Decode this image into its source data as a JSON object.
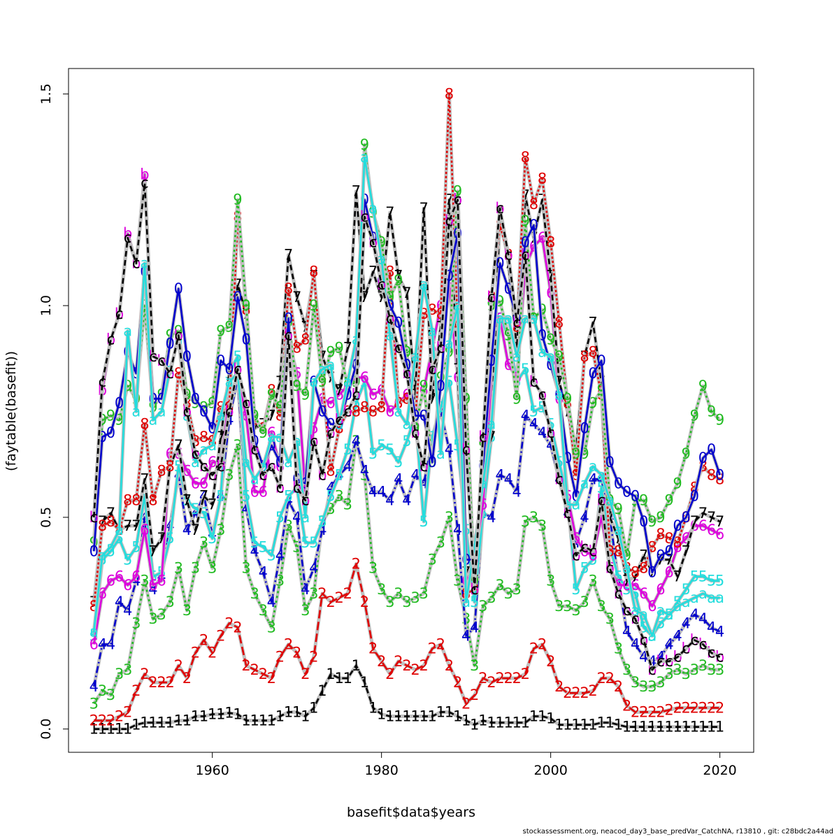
{
  "chart_data": {
    "type": "line",
    "xlabel": "basefit$data$years",
    "ylabel": "(faytable(basefit))",
    "xlim": [
      1943,
      2024
    ],
    "ylim": [
      -0.055,
      1.56
    ],
    "x_ticks": [
      1960,
      1980,
      2000,
      2020
    ],
    "y_ticks": [
      0.0,
      0.5,
      1.0,
      1.5
    ],
    "y_tick_labels": [
      "0.0",
      "0.5",
      "1.0",
      "1.5"
    ],
    "grid": false,
    "x": [
      1946,
      1947,
      1948,
      1949,
      1950,
      1951,
      1952,
      1953,
      1954,
      1955,
      1956,
      1957,
      1958,
      1959,
      1960,
      1961,
      1962,
      1963,
      1964,
      1965,
      1966,
      1967,
      1968,
      1969,
      1970,
      1971,
      1972,
      1973,
      1974,
      1975,
      1976,
      1977,
      1978,
      1979,
      1980,
      1981,
      1982,
      1983,
      1984,
      1985,
      1986,
      1987,
      1988,
      1989,
      1990,
      1991,
      1992,
      1993,
      1994,
      1995,
      1996,
      1997,
      1998,
      1999,
      2000,
      2001,
      2002,
      2003,
      2004,
      2005,
      2006,
      2007,
      2008,
      2009,
      2010,
      2011,
      2012,
      2013,
      2014,
      2015,
      2016,
      2017,
      2018,
      2019,
      2020
    ],
    "series": [
      {
        "name": "1",
        "color": "#000000",
        "dash": "8,5",
        "values": [
          0.0,
          0.0,
          0.0,
          0.0,
          0.0,
          0.01,
          0.015,
          0.015,
          0.015,
          0.015,
          0.02,
          0.02,
          0.03,
          0.03,
          0.035,
          0.035,
          0.038,
          0.035,
          0.02,
          0.02,
          0.02,
          0.02,
          0.03,
          0.04,
          0.04,
          0.03,
          0.05,
          0.09,
          0.13,
          0.12,
          0.12,
          0.15,
          0.11,
          0.05,
          0.035,
          0.03,
          0.03,
          0.03,
          0.03,
          0.03,
          0.03,
          0.04,
          0.04,
          0.03,
          0.02,
          0.01,
          0.02,
          0.015,
          0.015,
          0.015,
          0.015,
          0.015,
          0.03,
          0.03,
          0.025,
          0.01,
          0.01,
          0.01,
          0.01,
          0.01,
          0.015,
          0.015,
          0.01,
          0.005,
          0.005,
          0.005,
          0.005,
          0.005,
          0.005,
          0.005,
          0.005,
          0.005,
          0.005,
          0.005,
          0.005
        ]
      },
      {
        "name": "2",
        "color": "#df0000",
        "dash": "12,5",
        "values": [
          0.02,
          0.02,
          0.02,
          0.03,
          0.04,
          0.09,
          0.13,
          0.11,
          0.11,
          0.11,
          0.15,
          0.12,
          0.18,
          0.21,
          0.18,
          0.22,
          0.25,
          0.24,
          0.15,
          0.14,
          0.13,
          0.12,
          0.17,
          0.2,
          0.18,
          0.13,
          0.17,
          0.32,
          0.3,
          0.31,
          0.32,
          0.39,
          0.3,
          0.19,
          0.16,
          0.13,
          0.16,
          0.15,
          0.14,
          0.15,
          0.19,
          0.2,
          0.15,
          0.11,
          0.06,
          0.08,
          0.12,
          0.11,
          0.12,
          0.12,
          0.12,
          0.13,
          0.19,
          0.2,
          0.16,
          0.1,
          0.085,
          0.085,
          0.085,
          0.09,
          0.12,
          0.12,
          0.1,
          0.055,
          0.04,
          0.04,
          0.04,
          0.04,
          0.045,
          0.05,
          0.05,
          0.05,
          0.05,
          0.05,
          0.05
        ]
      },
      {
        "name": "3",
        "color": "#22bb22",
        "dash": "3,4",
        "values": [
          0.06,
          0.09,
          0.08,
          0.13,
          0.14,
          0.25,
          0.35,
          0.26,
          0.27,
          0.3,
          0.38,
          0.28,
          0.38,
          0.44,
          0.38,
          0.47,
          0.6,
          0.67,
          0.38,
          0.32,
          0.28,
          0.24,
          0.35,
          0.48,
          0.43,
          0.28,
          0.32,
          0.49,
          0.52,
          0.55,
          0.53,
          0.68,
          0.6,
          0.38,
          0.33,
          0.3,
          0.32,
          0.3,
          0.31,
          0.32,
          0.4,
          0.44,
          0.5,
          0.35,
          0.26,
          0.15,
          0.29,
          0.31,
          0.34,
          0.32,
          0.33,
          0.49,
          0.5,
          0.48,
          0.35,
          0.29,
          0.29,
          0.28,
          0.3,
          0.35,
          0.29,
          0.26,
          0.19,
          0.14,
          0.11,
          0.1,
          0.1,
          0.11,
          0.13,
          0.14,
          0.13,
          0.14,
          0.15,
          0.14,
          0.14
        ]
      },
      {
        "name": "4",
        "color": "#0000cc",
        "dash": "10,4,2,4",
        "values": [
          0.1,
          0.2,
          0.2,
          0.3,
          0.28,
          0.35,
          0.5,
          0.33,
          0.36,
          0.48,
          0.6,
          0.47,
          0.51,
          0.55,
          0.46,
          0.55,
          0.73,
          0.83,
          0.52,
          0.42,
          0.37,
          0.3,
          0.41,
          0.54,
          0.5,
          0.33,
          0.38,
          0.47,
          0.57,
          0.6,
          0.62,
          0.68,
          0.61,
          0.56,
          0.56,
          0.54,
          0.59,
          0.54,
          0.6,
          0.58,
          0.68,
          0.75,
          0.66,
          0.47,
          0.22,
          0.24,
          0.51,
          0.5,
          0.6,
          0.59,
          0.56,
          0.74,
          0.72,
          0.7,
          0.67,
          0.59,
          0.51,
          0.44,
          0.5,
          0.59,
          0.59,
          0.5,
          0.35,
          0.23,
          0.2,
          0.17,
          0.16,
          0.17,
          0.2,
          0.22,
          0.25,
          0.27,
          0.26,
          0.24,
          0.23
        ]
      },
      {
        "name": "5",
        "color": "#22dddd",
        "dash": "",
        "values": [
          0.22,
          0.4,
          0.42,
          0.45,
          0.4,
          0.43,
          0.55,
          0.36,
          0.37,
          0.45,
          0.62,
          0.54,
          0.52,
          0.51,
          0.45,
          0.55,
          0.84,
          0.88,
          0.55,
          0.44,
          0.43,
          0.41,
          0.5,
          0.55,
          0.57,
          0.44,
          0.44,
          0.49,
          0.55,
          0.6,
          0.66,
          0.77,
          0.82,
          0.65,
          0.67,
          0.66,
          0.63,
          0.68,
          0.74,
          0.49,
          0.69,
          0.76,
          0.82,
          0.67,
          0.47,
          0.3,
          0.51,
          0.69,
          0.97,
          0.93,
          0.82,
          0.85,
          0.75,
          0.76,
          0.72,
          0.63,
          0.54,
          0.33,
          0.38,
          0.4,
          0.57,
          0.43,
          0.36,
          0.33,
          0.32,
          0.24,
          0.22,
          0.25,
          0.27,
          0.3,
          0.33,
          0.36,
          0.36,
          0.35,
          0.35
        ]
      },
      {
        "name": "6",
        "color": "#dd00dd",
        "dash": "",
        "values": [
          0.2,
          0.32,
          0.35,
          0.36,
          0.34,
          0.36,
          0.47,
          0.34,
          0.35,
          0.65,
          0.65,
          0.61,
          0.58,
          0.58,
          0.63,
          0.63,
          0.78,
          0.83,
          0.74,
          0.56,
          0.56,
          0.7,
          0.62,
          0.92,
          0.84,
          0.56,
          0.71,
          0.78,
          0.77,
          0.79,
          0.81,
          0.83,
          0.83,
          0.79,
          0.8,
          0.75,
          0.77,
          0.79,
          0.72,
          0.8,
          0.9,
          1.0,
          1.05,
          0.83,
          0.35,
          0.4,
          0.53,
          0.83,
          0.97,
          0.86,
          0.83,
          1.09,
          1.14,
          1.16,
          1.03,
          0.78,
          0.55,
          0.45,
          0.42,
          0.41,
          0.5,
          0.38,
          0.34,
          0.34,
          0.34,
          0.32,
          0.29,
          0.33,
          0.37,
          0.43,
          0.45,
          0.48,
          0.48,
          0.47,
          0.46
        ]
      },
      {
        "name": "7",
        "color": "#000000",
        "dash": "8,5",
        "values": [
          0.3,
          0.49,
          0.51,
          0.47,
          0.48,
          0.48,
          0.59,
          0.42,
          0.45,
          0.62,
          0.67,
          0.54,
          0.47,
          0.55,
          0.53,
          0.69,
          0.84,
          1.05,
          0.98,
          0.71,
          0.72,
          0.74,
          0.82,
          1.12,
          1.02,
          0.95,
          1.07,
          0.88,
          0.83,
          0.8,
          0.9,
          1.27,
          1.02,
          1.08,
          1.02,
          1.22,
          1.07,
          1.03,
          0.79,
          1.23,
          0.78,
          0.95,
          1.25,
          0.85,
          0.37,
          0.35,
          0.62,
          0.69,
          1.22,
          1.1,
          0.9,
          1.26,
          1.16,
          1.25,
          1.07,
          0.82,
          0.75,
          0.66,
          0.88,
          0.96,
          0.82,
          0.5,
          0.45,
          0.35,
          0.36,
          0.41,
          0.37,
          0.4,
          0.4,
          0.36,
          0.42,
          0.49,
          0.51,
          0.5,
          0.49
        ]
      },
      {
        "name": "8",
        "color": "#df0000",
        "dash": "3,3",
        "values": [
          0.29,
          0.48,
          0.49,
          0.47,
          0.54,
          0.54,
          0.72,
          0.54,
          0.61,
          0.62,
          0.84,
          0.77,
          0.68,
          0.69,
          0.68,
          0.76,
          0.76,
          1.21,
          0.99,
          0.73,
          0.71,
          0.8,
          0.74,
          1.04,
          0.9,
          0.92,
          1.08,
          0.83,
          0.61,
          0.71,
          0.75,
          0.75,
          0.76,
          0.75,
          0.76,
          1.08,
          0.77,
          0.78,
          0.74,
          0.98,
          0.99,
          0.98,
          1.5,
          0.96,
          0.32,
          0.33,
          0.68,
          1.02,
          1.19,
          1.12,
          0.95,
          1.35,
          1.24,
          1.3,
          1.15,
          0.96,
          0.77,
          0.6,
          0.88,
          0.89,
          0.79,
          0.42,
          0.42,
          0.38,
          0.37,
          0.38,
          0.43,
          0.46,
          0.45,
          0.44,
          0.5,
          0.57,
          0.62,
          0.6,
          0.59
        ]
      },
      {
        "name": "9",
        "color": "#22bb22",
        "dash": "3,4",
        "values": [
          0.44,
          0.73,
          0.74,
          0.73,
          0.81,
          0.78,
          1.0,
          0.76,
          0.79,
          0.93,
          0.94,
          0.79,
          0.77,
          0.76,
          0.77,
          0.94,
          0.95,
          1.25,
          1.0,
          0.74,
          0.7,
          0.79,
          0.76,
          0.96,
          0.81,
          0.79,
          1.0,
          0.82,
          0.89,
          0.9,
          0.81,
          0.82,
          1.38,
          1.22,
          1.15,
          1.02,
          1.06,
          0.89,
          0.71,
          0.81,
          0.63,
          0.83,
          0.89,
          1.27,
          0.78,
          0.35,
          0.67,
          1.0,
          1.01,
          0.93,
          0.78,
          1.2,
          0.97,
          0.99,
          0.92,
          0.88,
          0.78,
          0.65,
          0.65,
          0.77,
          0.8,
          0.54,
          0.52,
          0.41,
          0.54,
          0.54,
          0.49,
          0.5,
          0.54,
          0.58,
          0.65,
          0.74,
          0.81,
          0.75,
          0.73
        ]
      },
      {
        "name": "0",
        "color": "#0000cc",
        "dash": "",
        "values": [
          0.42,
          0.69,
          0.7,
          0.77,
          0.89,
          0.84,
          1.08,
          0.78,
          0.78,
          0.91,
          1.04,
          0.88,
          0.78,
          0.75,
          0.71,
          0.87,
          0.85,
          1.02,
          0.92,
          0.68,
          0.62,
          0.67,
          0.63,
          0.97,
          0.59,
          0.58,
          0.82,
          0.75,
          0.72,
          0.72,
          0.79,
          0.86,
          1.25,
          1.16,
          1.06,
          1.0,
          0.96,
          0.86,
          0.74,
          0.74,
          0.63,
          0.81,
          1.07,
          1.17,
          0.4,
          0.4,
          0.62,
          0.87,
          1.1,
          1.04,
          0.97,
          1.15,
          1.19,
          0.93,
          0.86,
          0.79,
          0.64,
          0.55,
          0.71,
          0.84,
          0.87,
          0.63,
          0.58,
          0.56,
          0.55,
          0.49,
          0.37,
          0.41,
          0.42,
          0.48,
          0.5,
          0.55,
          0.64,
          0.66,
          0.6
        ]
      },
      {
        "name": "a",
        "color": "#22dddd",
        "dash": "",
        "values": [
          0.23,
          0.41,
          0.43,
          0.47,
          0.94,
          0.75,
          1.1,
          0.73,
          0.75,
          0.85,
          0.92,
          0.74,
          0.63,
          0.66,
          0.67,
          0.74,
          0.82,
          0.84,
          0.63,
          0.59,
          0.62,
          0.69,
          0.69,
          0.63,
          0.68,
          0.5,
          0.82,
          0.85,
          0.86,
          0.72,
          0.82,
          0.92,
          1.35,
          1.23,
          1.11,
          0.93,
          0.75,
          0.72,
          0.88,
          1.05,
          0.94,
          0.65,
          0.91,
          1.0,
          0.3,
          0.43,
          0.58,
          0.72,
          0.97,
          0.97,
          0.88,
          0.97,
          0.97,
          0.89,
          0.88,
          0.79,
          0.53,
          0.53,
          0.58,
          0.62,
          0.6,
          0.54,
          0.47,
          0.38,
          0.28,
          0.27,
          0.22,
          0.28,
          0.27,
          0.29,
          0.3,
          0.31,
          0.32,
          0.31,
          0.31
        ]
      },
      {
        "name": "b",
        "color": "#dd00dd",
        "dash": "",
        "values": [
          0.5,
          0.8,
          0.92,
          0.98,
          1.17,
          1.1,
          1.31,
          0.88,
          0.87,
          0.84,
          0.93,
          0.75,
          0.65,
          0.62,
          0.6,
          0.62,
          0.75,
          0.85,
          0.77,
          0.66,
          0.6,
          0.62,
          0.57,
          0.93,
          0.57,
          0.54,
          0.68,
          0.6,
          0.7,
          0.73,
          0.75,
          0.79,
          1.21,
          1.15,
          1.05,
          0.97,
          0.9,
          0.84,
          0.7,
          0.62,
          0.85,
          0.9,
          1.2,
          1.25,
          0.66,
          0.33,
          0.69,
          1.02,
          1.23,
          1.12,
          0.96,
          1.12,
          0.82,
          0.79,
          0.7,
          0.59,
          0.51,
          0.41,
          0.43,
          0.42,
          0.54,
          0.38,
          0.32,
          0.28,
          0.26,
          0.21,
          0.14,
          0.16,
          0.16,
          0.17,
          0.19,
          0.21,
          0.2,
          0.18,
          0.17
        ]
      },
      {
        "name": "c",
        "color": "#000000",
        "dash": "8,5",
        "values": [
          0.5,
          0.82,
          0.92,
          0.98,
          1.16,
          1.1,
          1.29,
          0.88,
          0.87,
          0.84,
          0.93,
          0.75,
          0.65,
          0.62,
          0.6,
          0.62,
          0.75,
          0.85,
          0.77,
          0.66,
          0.6,
          0.62,
          0.57,
          0.93,
          0.57,
          0.54,
          0.68,
          0.6,
          0.7,
          0.73,
          0.75,
          0.79,
          1.21,
          1.15,
          1.05,
          0.97,
          0.9,
          0.84,
          0.7,
          0.62,
          0.85,
          0.9,
          1.2,
          1.25,
          0.66,
          0.33,
          0.69,
          1.02,
          1.23,
          1.12,
          0.96,
          1.12,
          0.82,
          0.79,
          0.7,
          0.59,
          0.51,
          0.41,
          0.43,
          0.42,
          0.54,
          0.38,
          0.32,
          0.28,
          0.26,
          0.21,
          0.14,
          0.16,
          0.16,
          0.17,
          0.19,
          0.21,
          0.2,
          0.18,
          0.17
        ]
      }
    ]
  },
  "footer": {
    "text": "stockassessment.org, neacod_day3_base_predVar_CatchNA, r13810 , git: c28bdc2a44ad"
  }
}
